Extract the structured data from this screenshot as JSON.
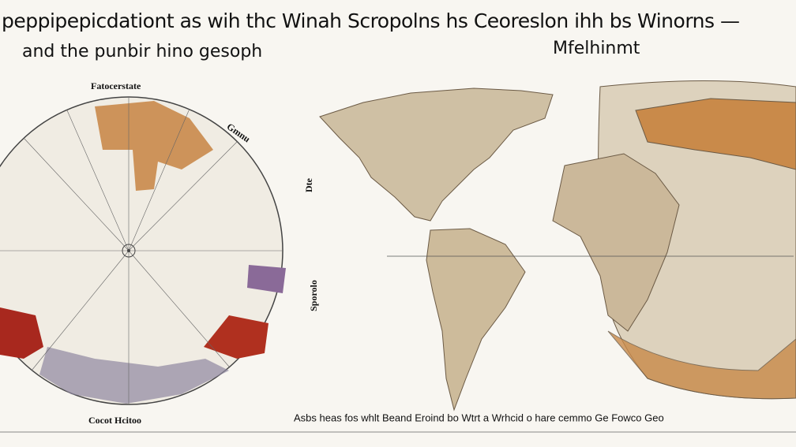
{
  "header": {
    "title_line1": "peppipepicdationt as wih thc Winah Scropolns hs Ceoreslon ihh bs Winorns —",
    "title_line2": "and the punbir hino gesoph",
    "subtitle": "Mfelhinmt"
  },
  "circle_map": {
    "label_top": "Fatocerstate",
    "label_right": "Gmnu",
    "label_side_top": "Dte",
    "label_side_mid": "Sporolo",
    "label_bottom": "Cocot Hcitoo"
  },
  "footer": {
    "caption": "Asbs heas fos whlt Beand Eroind bo Wtrt a Wrhcid o hare cemmo Ge Fowco Geo"
  }
}
